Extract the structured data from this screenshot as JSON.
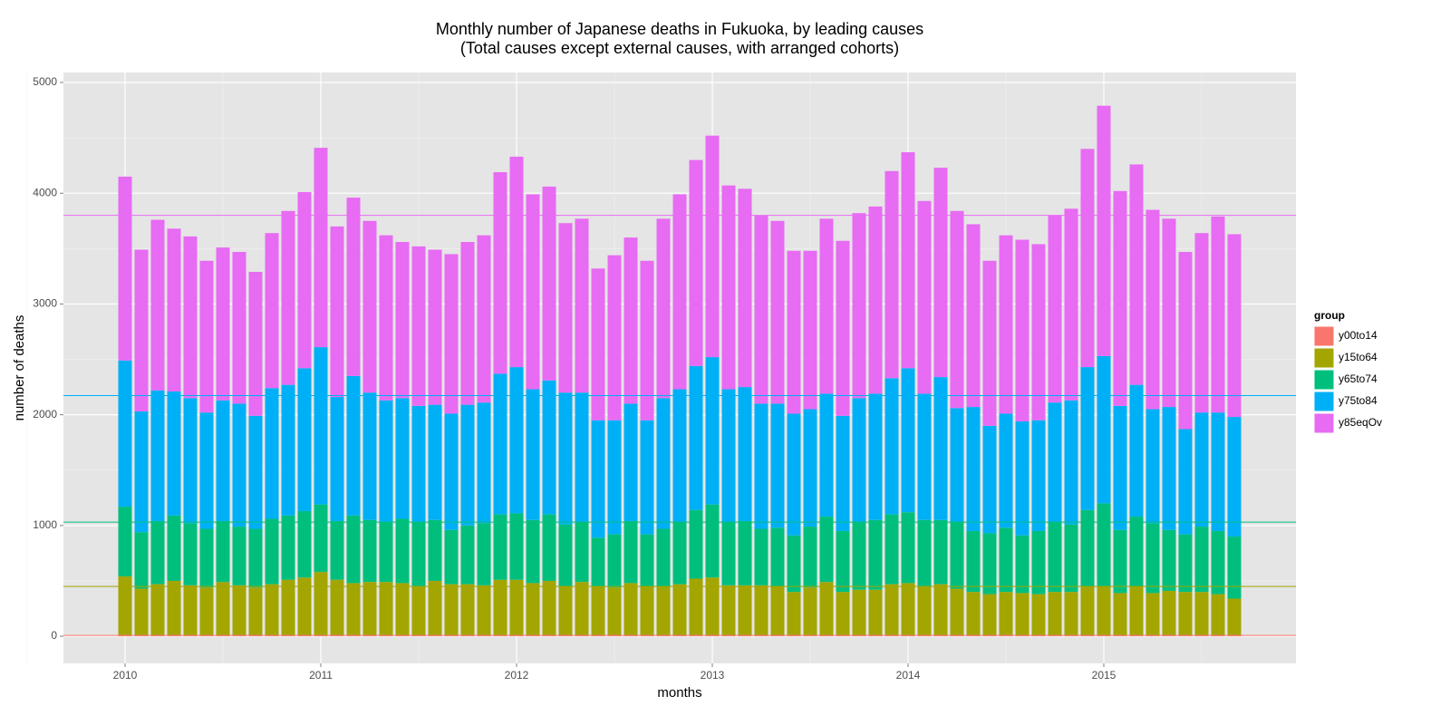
{
  "chart_data": {
    "type": "stacked_bar",
    "title": "Monthly number of Japanese deaths in Fukuoka, by leading causes",
    "subtitle": "(Total causes except external causes, with arranged cohorts)",
    "x_label": "months",
    "y_label": "number of deaths",
    "legend_title": "group",
    "categories": [
      "2010",
      null,
      null,
      null,
      null,
      null,
      null,
      null,
      null,
      null,
      null,
      null,
      "2011",
      null,
      null,
      null,
      null,
      null,
      null,
      null,
      null,
      null,
      null,
      null,
      "2012",
      null,
      null,
      null,
      null,
      null,
      null,
      null,
      null,
      null,
      null,
      null,
      "2013",
      null,
      null,
      null,
      null,
      null,
      null,
      null,
      null,
      null,
      null,
      null,
      "2014",
      null,
      null,
      null,
      null,
      null,
      null,
      null,
      null,
      null,
      null,
      null,
      "2015",
      null,
      null,
      null,
      null,
      null,
      null,
      null,
      null
    ],
    "series": [
      {
        "name": "y00to14",
        "color": "#f8766d",
        "values": [
          10,
          10,
          10,
          10,
          10,
          10,
          10,
          10,
          10,
          10,
          10,
          10,
          10,
          10,
          10,
          10,
          10,
          10,
          10,
          10,
          10,
          10,
          10,
          10,
          10,
          10,
          10,
          10,
          10,
          10,
          10,
          10,
          10,
          10,
          10,
          10,
          10,
          10,
          10,
          10,
          10,
          10,
          10,
          10,
          10,
          10,
          10,
          10,
          10,
          10,
          10,
          10,
          10,
          10,
          10,
          10,
          10,
          10,
          10,
          10,
          10,
          10,
          10,
          10,
          10,
          10,
          10,
          10,
          10
        ]
      },
      {
        "name": "y15to64",
        "color": "#a3a500",
        "values": [
          530,
          420,
          460,
          490,
          450,
          430,
          480,
          450,
          430,
          460,
          500,
          520,
          570,
          500,
          470,
          480,
          480,
          470,
          440,
          490,
          460,
          460,
          450,
          500,
          500,
          470,
          490,
          440,
          480,
          440,
          430,
          470,
          440,
          440,
          460,
          510,
          520,
          450,
          450,
          450,
          440,
          390,
          430,
          480,
          390,
          410,
          410,
          460,
          470,
          440,
          460,
          420,
          390,
          370,
          390,
          380,
          370,
          390,
          390,
          440,
          440,
          380,
          440,
          380,
          400,
          390,
          390,
          370,
          330
        ]
      },
      {
        "name": "y65to74",
        "color": "#00bf7d",
        "values": [
          630,
          510,
          570,
          590,
          560,
          530,
          550,
          530,
          530,
          590,
          580,
          600,
          610,
          530,
          610,
          560,
          540,
          580,
          580,
          550,
          490,
          530,
          560,
          590,
          600,
          570,
          600,
          560,
          540,
          440,
          480,
          560,
          470,
          520,
          560,
          620,
          660,
          570,
          580,
          510,
          530,
          510,
          550,
          590,
          550,
          610,
          630,
          630,
          640,
          600,
          580,
          600,
          550,
          550,
          580,
          520,
          570,
          630,
          610,
          690,
          750,
          570,
          630,
          630,
          550,
          520,
          590,
          570,
          560
        ]
      },
      {
        "name": "y75to84",
        "color": "#00b0f6",
        "values": [
          1320,
          1090,
          1180,
          1120,
          1130,
          1050,
          1090,
          1110,
          1020,
          1180,
          1180,
          1290,
          1420,
          1120,
          1260,
          1150,
          1100,
          1090,
          1050,
          1040,
          1050,
          1090,
          1090,
          1270,
          1320,
          1180,
          1210,
          1190,
          1170,
          1060,
          1030,
          1060,
          1030,
          1180,
          1200,
          1300,
          1330,
          1200,
          1210,
          1130,
          1120,
          1100,
          1060,
          1110,
          1040,
          1120,
          1140,
          1230,
          1300,
          1140,
          1290,
          1030,
          1120,
          970,
          1030,
          1030,
          1000,
          1080,
          1120,
          1290,
          1330,
          1120,
          1190,
          1030,
          1110,
          950,
          1030,
          1070,
          1080
        ]
      },
      {
        "name": "y85eqOv",
        "color": "#e76bf3",
        "values": [
          1660,
          1460,
          1540,
          1470,
          1460,
          1370,
          1380,
          1370,
          1300,
          1400,
          1570,
          1590,
          1800,
          1540,
          1610,
          1550,
          1490,
          1410,
          1440,
          1400,
          1440,
          1470,
          1510,
          1820,
          1900,
          1760,
          1750,
          1530,
          1570,
          1370,
          1490,
          1500,
          1440,
          1620,
          1760,
          1860,
          2000,
          1840,
          1790,
          1700,
          1650,
          1470,
          1430,
          1580,
          1580,
          1670,
          1690,
          1870,
          1950,
          1740,
          1890,
          1780,
          1650,
          1490,
          1610,
          1640,
          1590,
          1690,
          1730,
          1970,
          2260,
          1940,
          1990,
          1800,
          1700,
          1600,
          1620,
          1770,
          1650
        ]
      }
    ],
    "reference_lines": [
      {
        "value": 8,
        "color": "#f8766d"
      },
      {
        "value": 450,
        "color": "#a3a500"
      },
      {
        "value": 1030,
        "color": "#00bf7d"
      },
      {
        "value": 2173,
        "color": "#00b0f6"
      },
      {
        "value": 3800,
        "color": "#e76bf3"
      }
    ],
    "ylim": [
      -245,
      5090
    ],
    "yticks": [
      0,
      1000,
      2000,
      3000,
      4000,
      5000
    ],
    "grid": true,
    "legend_position": "right"
  }
}
